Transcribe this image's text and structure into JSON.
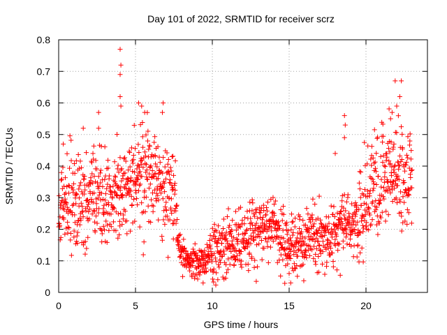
{
  "chart_data": {
    "type": "scatter",
    "title": "Day 101 of 2022, SRMTID for receiver scrz",
    "xlabel": "GPS time / hours",
    "ylabel": "SRMTID / TECUs",
    "xlim": [
      0,
      24
    ],
    "ylim": [
      0,
      0.8
    ],
    "x_ticks": [
      0,
      5,
      10,
      15,
      20
    ],
    "y_ticks": [
      0,
      0.1,
      0.2,
      0.3,
      0.4,
      0.5,
      0.6,
      0.7,
      0.8
    ],
    "x_tick_labels": [
      "0",
      "5",
      "10",
      "15",
      "20"
    ],
    "y_tick_labels": [
      "0",
      "0.1",
      "0.2",
      "0.3",
      "0.4",
      "0.5",
      "0.6",
      "0.7",
      "0.8"
    ],
    "grid": true,
    "marker": "+",
    "marker_color": "#ff0000",
    "series": [
      {
        "name": "SRMTID",
        "x_range": [
          0,
          23
        ],
        "trend": [
          [
            0.0,
            0.27
          ],
          [
            0.5,
            0.26
          ],
          [
            1.0,
            0.27
          ],
          [
            1.5,
            0.28
          ],
          [
            2.0,
            0.3
          ],
          [
            2.5,
            0.31
          ],
          [
            3.0,
            0.3
          ],
          [
            3.5,
            0.31
          ],
          [
            4.0,
            0.34
          ],
          [
            4.5,
            0.35
          ],
          [
            5.0,
            0.38
          ],
          [
            5.5,
            0.37
          ],
          [
            6.0,
            0.36
          ],
          [
            6.5,
            0.35
          ],
          [
            7.0,
            0.33
          ],
          [
            7.5,
            0.3
          ],
          [
            7.8,
            0.16
          ],
          [
            8.0,
            0.12
          ],
          [
            8.5,
            0.1
          ],
          [
            9.0,
            0.09
          ],
          [
            9.5,
            0.09
          ],
          [
            10.0,
            0.13
          ],
          [
            10.5,
            0.15
          ],
          [
            11.0,
            0.16
          ],
          [
            11.5,
            0.17
          ],
          [
            12.0,
            0.18
          ],
          [
            12.5,
            0.19
          ],
          [
            13.0,
            0.2
          ],
          [
            13.5,
            0.2
          ],
          [
            14.0,
            0.21
          ],
          [
            14.5,
            0.18
          ],
          [
            15.0,
            0.15
          ],
          [
            15.5,
            0.15
          ],
          [
            16.0,
            0.16
          ],
          [
            16.5,
            0.17
          ],
          [
            17.0,
            0.18
          ],
          [
            17.5,
            0.19
          ],
          [
            18.0,
            0.2
          ],
          [
            18.5,
            0.21
          ],
          [
            19.0,
            0.21
          ],
          [
            19.5,
            0.22
          ],
          [
            20.0,
            0.26
          ],
          [
            20.5,
            0.3
          ],
          [
            21.0,
            0.35
          ],
          [
            21.5,
            0.38
          ],
          [
            22.0,
            0.37
          ],
          [
            22.5,
            0.35
          ],
          [
            23.0,
            0.34
          ]
        ],
        "spikes": [
          [
            4.0,
            0.77
          ],
          [
            4.05,
            0.72
          ],
          [
            4.0,
            0.69
          ],
          [
            4.0,
            0.62
          ],
          [
            4.05,
            0.59
          ],
          [
            5.2,
            0.6
          ],
          [
            5.4,
            0.59
          ],
          [
            5.6,
            0.57
          ],
          [
            6.8,
            0.6
          ],
          [
            6.75,
            0.57
          ],
          [
            2.6,
            0.57
          ],
          [
            2.6,
            0.52
          ],
          [
            18.6,
            0.56
          ],
          [
            18.65,
            0.53
          ],
          [
            18.6,
            0.49
          ],
          [
            21.9,
            0.67
          ],
          [
            22.3,
            0.67
          ],
          [
            22.2,
            0.62
          ],
          [
            22.0,
            0.59
          ],
          [
            21.7,
            0.57
          ],
          [
            21.6,
            0.55
          ],
          [
            0.3,
            0.47
          ],
          [
            1.6,
            0.52
          ],
          [
            9.4,
            0.03
          ],
          [
            15.1,
            0.03
          ],
          [
            15.0,
            0.06
          ],
          [
            18.0,
            0.44
          ],
          [
            14.9,
            0.09
          ]
        ],
        "point_count": 1600
      }
    ]
  }
}
